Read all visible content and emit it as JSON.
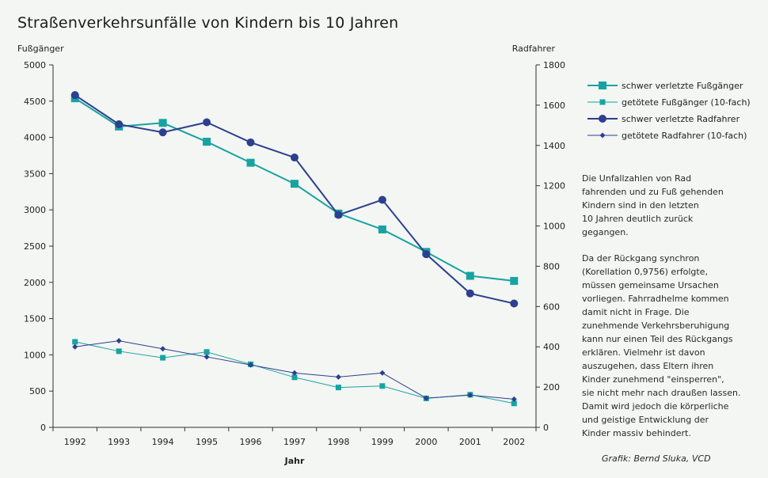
{
  "chart_data": {
    "type": "line",
    "title": "Straßenverkehrsunfälle von Kindern bis 10 Jahren",
    "xlabel": "Jahr",
    "ylabel_left": "Fußgänger",
    "ylabel_right": "Radfahrer",
    "x": [
      "1992",
      "1993",
      "1994",
      "1995",
      "1996",
      "1997",
      "1998",
      "1999",
      "2000",
      "2001",
      "2002"
    ],
    "ylim_left": [
      0,
      5000
    ],
    "ylim_right": [
      0,
      1800
    ],
    "left_ticks": [
      "0",
      "500",
      "1000",
      "1500",
      "2000",
      "2500",
      "3000",
      "3500",
      "4000",
      "4500",
      "5000"
    ],
    "right_ticks": [
      "0",
      "200",
      "400",
      "600",
      "800",
      "1000",
      "1200",
      "1400",
      "1600",
      "1800"
    ],
    "grid": false,
    "legend_position": "right",
    "series": [
      {
        "name": "schwer verletzte Fußgänger",
        "axis": "left",
        "color": "#17a3a3",
        "marker": "square-large",
        "values": [
          4540,
          4150,
          4200,
          3940,
          3650,
          3360,
          2950,
          2730,
          2420,
          2090,
          2020
        ]
      },
      {
        "name": "getötete Fußgänger (10-fach)",
        "axis": "left",
        "color": "#17a3a3",
        "marker": "square-small",
        "values": [
          1180,
          1050,
          960,
          1040,
          870,
          690,
          550,
          570,
          400,
          450,
          330
        ]
      },
      {
        "name": "schwer verletzte Radfahrer",
        "axis": "right",
        "color": "#2d3f8f",
        "marker": "circle-large",
        "values": [
          1650,
          1505,
          1465,
          1515,
          1415,
          1340,
          1055,
          1130,
          860,
          665,
          615
        ]
      },
      {
        "name": "getötete Radfahrer (10-fach)",
        "axis": "right",
        "color": "#2d3f8f",
        "marker": "diamond-small",
        "values": [
          400,
          430,
          390,
          350,
          310,
          270,
          250,
          270,
          145,
          160,
          140
        ]
      }
    ]
  },
  "info": {
    "paragraph1": "Die Unfallzahlen von Rad\nfahrenden und zu Fuß gehenden\nKindern sind in den letzten\n10 Jahren deutlich zurück\ngegangen.",
    "paragraph2": "Da der Rückgang synchron\n(Korellation 0,9756) erfolgte,\nmüssen gemeinsame Ursachen\nvorliegen. Fahrradhelme kommen\ndamit nicht in Frage. Die\nzunehmende Verkehrsberuhigung\nkann nur einen Teil des Rückgangs\nerklären. Vielmehr ist davon\nauszugehen, dass Eltern ihren\nKinder zunehmend \"einsperren\",\nsie nicht mehr nach draußen lassen.\nDamit wird jedoch die körperliche\nund geistige Entwicklung der\nKinder massiv behindert."
  },
  "credit": "Grafik: Bernd Sluka, VCD"
}
